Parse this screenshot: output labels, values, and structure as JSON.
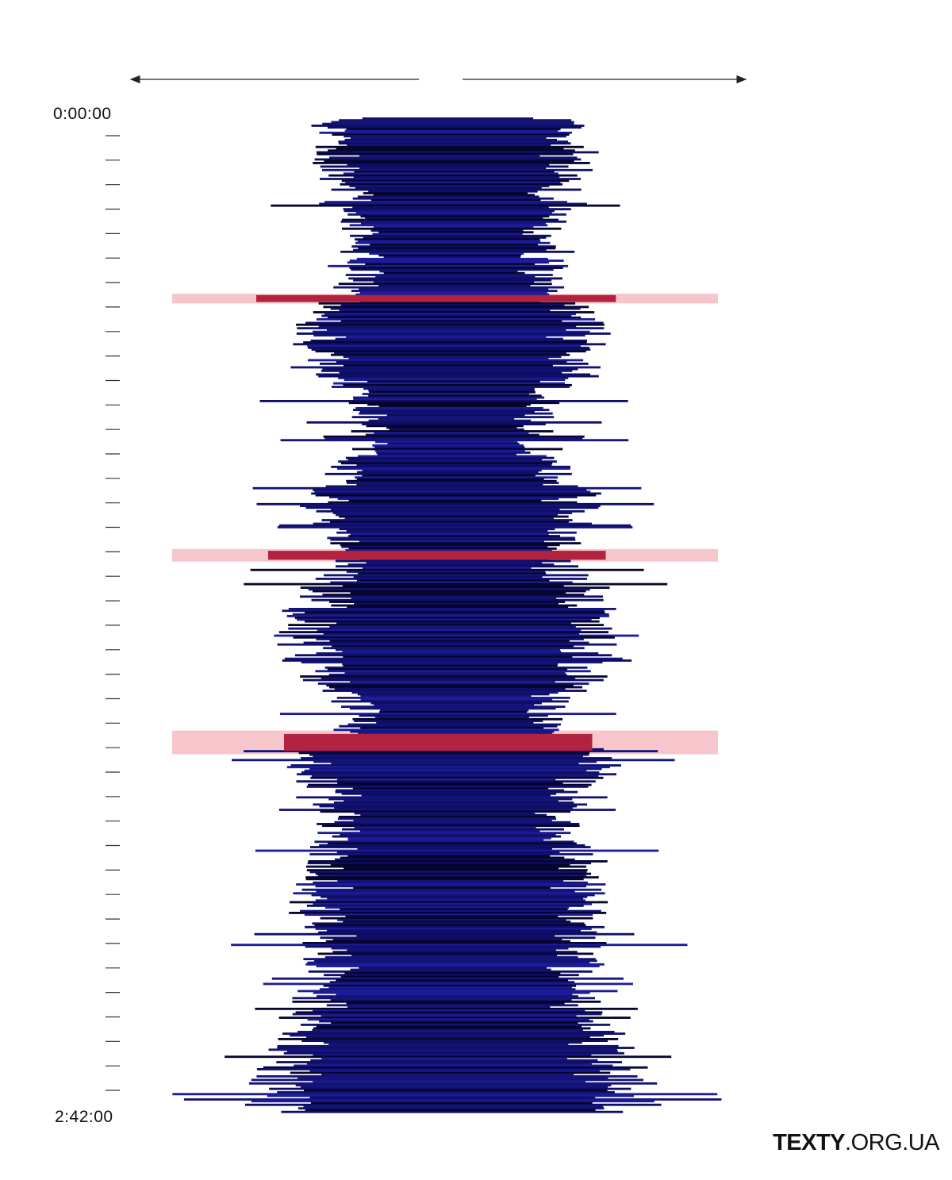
{
  "chart_data": {
    "type": "bar",
    "orientation": "horizontal-symmetric",
    "title": "",
    "time_axis": {
      "start_label": "0:00:00",
      "end_label": "2:42:00",
      "tick_count": 40
    },
    "arrows": [
      "left",
      "right"
    ],
    "colors": {
      "bars": "#0e0e66",
      "bars_dark": "#05052e",
      "highlight_bar": "#b3223f",
      "highlight_band": "#f7c6cc"
    },
    "profile_halfwidth": [
      [
        0.0,
        145
      ],
      [
        0.02,
        150
      ],
      [
        0.05,
        148
      ],
      [
        0.08,
        135
      ],
      [
        0.1,
        122
      ],
      [
        0.13,
        110
      ],
      [
        0.16,
        115
      ],
      [
        0.19,
        150
      ],
      [
        0.21,
        170
      ],
      [
        0.24,
        160
      ],
      [
        0.27,
        140
      ],
      [
        0.29,
        118
      ],
      [
        0.32,
        105
      ],
      [
        0.34,
        112
      ],
      [
        0.36,
        148
      ],
      [
        0.38,
        160
      ],
      [
        0.41,
        150
      ],
      [
        0.43,
        132
      ],
      [
        0.45,
        125
      ],
      [
        0.47,
        150
      ],
      [
        0.5,
        178
      ],
      [
        0.52,
        192
      ],
      [
        0.55,
        178
      ],
      [
        0.57,
        148
      ],
      [
        0.59,
        122
      ],
      [
        0.61,
        118
      ],
      [
        0.63,
        148
      ],
      [
        0.64,
        200
      ],
      [
        0.66,
        170
      ],
      [
        0.68,
        150
      ],
      [
        0.7,
        140
      ],
      [
        0.73,
        148
      ],
      [
        0.76,
        162
      ],
      [
        0.79,
        168
      ],
      [
        0.82,
        162
      ],
      [
        0.85,
        155
      ],
      [
        0.88,
        160
      ],
      [
        0.91,
        172
      ],
      [
        0.94,
        190
      ],
      [
        0.97,
        215
      ],
      [
        1.0,
        220
      ]
    ],
    "highlights": [
      {
        "position": 0.182,
        "thickness": 0.007,
        "bar_halfwidth": 245
      },
      {
        "position": 0.44,
        "thickness": 0.009,
        "bar_halfwidth": 230
      },
      {
        "position": 0.628,
        "thickness": 0.017,
        "bar_halfwidth": 210
      }
    ]
  },
  "brand": {
    "bold": "TEXTY",
    "rest": ".ORG.UA"
  }
}
